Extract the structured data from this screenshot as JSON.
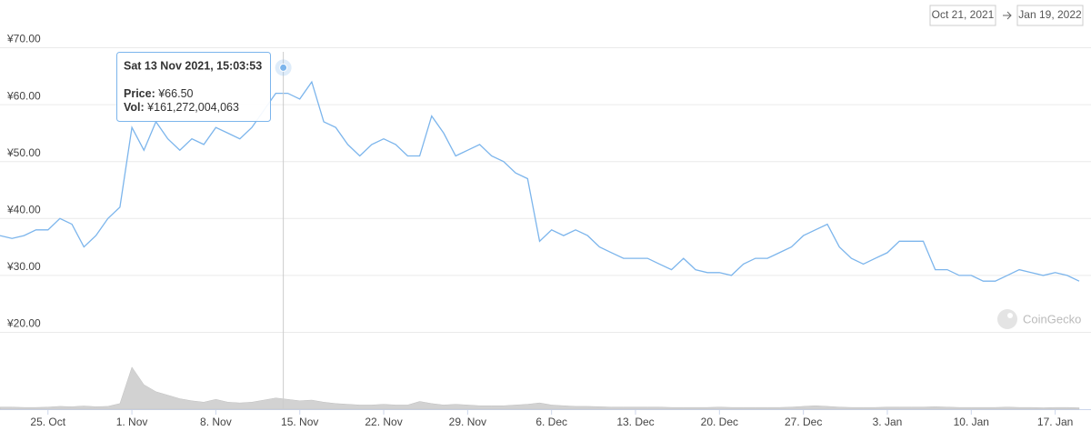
{
  "chart_data": {
    "type": "line",
    "range": {
      "from": "Oct 21, 2021",
      "to": "Jan 19, 2022"
    },
    "credit": "CoinGecko",
    "x": [
      "2021-10-21",
      "2021-10-22",
      "2021-10-23",
      "2021-10-24",
      "2021-10-25",
      "2021-10-26",
      "2021-10-27",
      "2021-10-28",
      "2021-10-29",
      "2021-10-30",
      "2021-10-31",
      "2021-11-01",
      "2021-11-02",
      "2021-11-03",
      "2021-11-04",
      "2021-11-05",
      "2021-11-06",
      "2021-11-07",
      "2021-11-08",
      "2021-11-09",
      "2021-11-10",
      "2021-11-11",
      "2021-11-12",
      "2021-11-13",
      "2021-11-14",
      "2021-11-15",
      "2021-11-16",
      "2021-11-17",
      "2021-11-18",
      "2021-11-19",
      "2021-11-20",
      "2021-11-21",
      "2021-11-22",
      "2021-11-23",
      "2021-11-24",
      "2021-11-25",
      "2021-11-26",
      "2021-11-27",
      "2021-11-28",
      "2021-11-29",
      "2021-11-30",
      "2021-12-01",
      "2021-12-02",
      "2021-12-03",
      "2021-12-04",
      "2021-12-05",
      "2021-12-06",
      "2021-12-07",
      "2021-12-08",
      "2021-12-09",
      "2021-12-10",
      "2021-12-11",
      "2021-12-12",
      "2021-12-13",
      "2021-12-14",
      "2021-12-15",
      "2021-12-16",
      "2021-12-17",
      "2021-12-18",
      "2021-12-19",
      "2021-12-20",
      "2021-12-21",
      "2021-12-22",
      "2021-12-23",
      "2021-12-24",
      "2021-12-25",
      "2021-12-26",
      "2021-12-27",
      "2021-12-28",
      "2021-12-29",
      "2021-12-30",
      "2021-12-31",
      "2022-01-01",
      "2022-01-02",
      "2022-01-03",
      "2022-01-04",
      "2022-01-05",
      "2022-01-06",
      "2022-01-07",
      "2022-01-08",
      "2022-01-09",
      "2022-01-10",
      "2022-01-11",
      "2022-01-12",
      "2022-01-13",
      "2022-01-14",
      "2022-01-15",
      "2022-01-16",
      "2022-01-17",
      "2022-01-18",
      "2022-01-19"
    ],
    "series": [
      {
        "name": "Price",
        "color": "#7cb5ec",
        "values": [
          37,
          36.5,
          37,
          38,
          38,
          40,
          39,
          35,
          37,
          40,
          42,
          56,
          52,
          57,
          54,
          52,
          54,
          53,
          56,
          55,
          54,
          56,
          59,
          62,
          62,
          61,
          64,
          57,
          56,
          53,
          51,
          53,
          54,
          53,
          51,
          51,
          58,
          55,
          51,
          52,
          53,
          51,
          50,
          48,
          47,
          36,
          38,
          37,
          38,
          37,
          35,
          34,
          33,
          33,
          33,
          32,
          31,
          33,
          31,
          30.5,
          30.5,
          30,
          32,
          33,
          33,
          34,
          35,
          37,
          38,
          39,
          35,
          33,
          32,
          33,
          34,
          36,
          36,
          36,
          31,
          31,
          30,
          30,
          29,
          29,
          30,
          31,
          30.5,
          30,
          30.5,
          30,
          29
        ]
      },
      {
        "name": "Vol",
        "color": "#c8c8c8",
        "axis": "y2",
        "values": [
          30000000000.0,
          30000000000.0,
          25000000000.0,
          25000000000.0,
          30000000000.0,
          40000000000.0,
          35000000000.0,
          45000000000.0,
          35000000000.0,
          40000000000.0,
          80000000000.0,
          600000000000.0,
          350000000000.0,
          250000000000.0,
          200000000000.0,
          150000000000.0,
          120000000000.0,
          100000000000.0,
          140000000000.0,
          100000000000.0,
          90000000000.0,
          100000000000.0,
          130000000000.0,
          160000000000.0,
          140000000000.0,
          120000000000.0,
          130000000000.0,
          100000000000.0,
          80000000000.0,
          70000000000.0,
          60000000000.0,
          60000000000.0,
          70000000000.0,
          60000000000.0,
          60000000000.0,
          110000000000.0,
          80000000000.0,
          60000000000.0,
          70000000000.0,
          60000000000.0,
          50000000000.0,
          50000000000.0,
          50000000000.0,
          60000000000.0,
          70000000000.0,
          90000000000.0,
          60000000000.0,
          50000000000.0,
          40000000000.0,
          40000000000.0,
          35000000000.0,
          30000000000.0,
          30000000000.0,
          30000000000.0,
          30000000000.0,
          30000000000.0,
          25000000000.0,
          25000000000.0,
          25000000000.0,
          25000000000.0,
          30000000000.0,
          25000000000.0,
          25000000000.0,
          25000000000.0,
          25000000000.0,
          25000000000.0,
          30000000000.0,
          40000000000.0,
          50000000000.0,
          40000000000.0,
          30000000000.0,
          25000000000.0,
          25000000000.0,
          25000000000.0,
          30000000000.0,
          30000000000.0,
          30000000000.0,
          30000000000.0,
          35000000000.0,
          30000000000.0,
          25000000000.0,
          25000000000.0,
          25000000000.0,
          25000000000.0,
          30000000000.0,
          25000000000.0,
          25000000000.0,
          20000000000.0,
          25000000000.0,
          25000000000.0,
          20000000000.0
        ]
      }
    ],
    "xlim": [
      "2021-10-21",
      "2022-01-19"
    ],
    "xticks": [
      {
        "value": "2021-10-25",
        "label": "25. Oct"
      },
      {
        "value": "2021-11-01",
        "label": "1. Nov"
      },
      {
        "value": "2021-11-08",
        "label": "8. Nov"
      },
      {
        "value": "2021-11-15",
        "label": "15. Nov"
      },
      {
        "value": "2021-11-22",
        "label": "22. Nov"
      },
      {
        "value": "2021-11-29",
        "label": "29. Nov"
      },
      {
        "value": "2021-12-06",
        "label": "6. Dec"
      },
      {
        "value": "2021-12-13",
        "label": "13. Dec"
      },
      {
        "value": "2021-12-20",
        "label": "20. Dec"
      },
      {
        "value": "2021-12-27",
        "label": "27. Dec"
      },
      {
        "value": "2022-01-03",
        "label": "3. Jan"
      },
      {
        "value": "2022-01-10",
        "label": "10. Jan"
      },
      {
        "value": "2022-01-17",
        "label": "17. Jan"
      }
    ],
    "ylim": [
      6.5,
      72
    ],
    "yticks": [
      {
        "value": 20,
        "label": "¥20.00"
      },
      {
        "value": 30,
        "label": "¥30.00"
      },
      {
        "value": 40,
        "label": "¥40.00"
      },
      {
        "value": 50,
        "label": "¥50.00"
      },
      {
        "value": 60,
        "label": "¥60.00"
      },
      {
        "value": 70,
        "label": "¥70.00"
      }
    ],
    "y2lim": [
      0,
      650000000000.0
    ],
    "grid": true,
    "tooltip": {
      "title": "Sat 13 Nov 2021, 15:03:53",
      "x": "2021-11-13T15:03:53",
      "price_label": "Price:",
      "value": 66.5,
      "value_label": "¥66.50",
      "volume_label": "Vol:",
      "volume": 161272004063,
      "volume_value_label": "¥161,272,004,063"
    }
  }
}
